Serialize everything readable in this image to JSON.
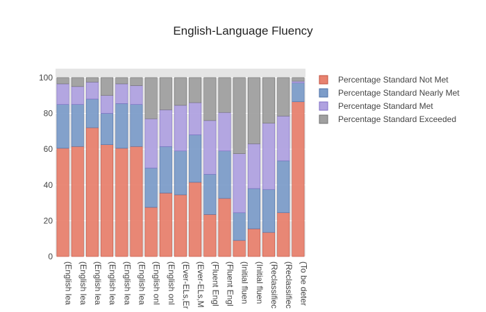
{
  "chart_data": {
    "type": "bar",
    "stacked": true,
    "title": "English-Language Fluency",
    "xlabel": "",
    "ylabel": "",
    "ylim": [
      0,
      105
    ],
    "yticks": [
      0,
      20,
      40,
      60,
      80,
      100
    ],
    "grid": true,
    "legend_position": "top-right",
    "categories": [
      "(English lea",
      "(English lea",
      "(English lea",
      "(English lea",
      "(English lea",
      "(English lea",
      "(English onl",
      "(English onl",
      "(Ever-ELs,Er",
      "(Ever-ELs,M",
      "(Fluent Engl",
      "(Fluent Engl",
      "(Initial fluen",
      "(Initial fluen",
      "(Reclassifiec",
      "(Reclassifiec",
      "(To be deter"
    ],
    "series": [
      {
        "name": "Percentage Standard Not Met",
        "color": "#e8826f",
        "stroke": "#c0503f",
        "values": [
          60.5,
          61.5,
          72,
          62.5,
          60.5,
          61.5,
          27.5,
          35.5,
          34.5,
          41.5,
          23.5,
          32.5,
          9,
          15.5,
          13.5,
          24.5,
          86.5
        ]
      },
      {
        "name": "Percentage Standard Nearly Met",
        "color": "#7d9dc9",
        "stroke": "#4a6fa8",
        "values": [
          24.5,
          23.5,
          16,
          17.5,
          25,
          23.5,
          22,
          26,
          24.5,
          26.5,
          22.5,
          26.5,
          15.5,
          22.5,
          24,
          29,
          10.5
        ]
      },
      {
        "name": "Percentage Standard Met",
        "color": "#b0a2e0",
        "stroke": "#7f6dc4",
        "values": [
          11.5,
          10,
          9.5,
          10,
          11,
          10.5,
          27.5,
          20.5,
          25.5,
          18,
          30,
          21.5,
          33,
          25,
          37,
          25,
          1
        ]
      },
      {
        "name": "Percentage Standard Exceeded",
        "color": "#a0a0a0",
        "stroke": "#707070",
        "values": [
          3.5,
          5,
          2.5,
          10,
          3.5,
          4.5,
          23,
          18,
          15.5,
          14,
          24,
          19.5,
          42.5,
          37,
          25.5,
          21.5,
          2
        ]
      }
    ]
  }
}
